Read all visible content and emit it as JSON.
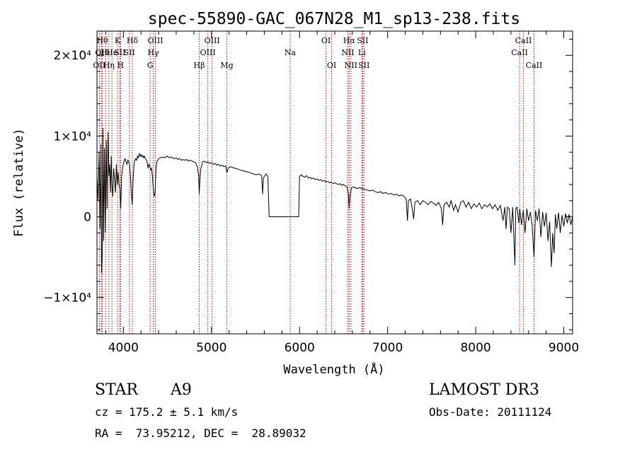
{
  "chart_data": {
    "type": "line",
    "title": "spec-55890-GAC_067N28_M1_sp13-238.fits",
    "xlabel": "Wavelength (Å)",
    "ylabel": "Flux (relative)",
    "xlim": [
      3700,
      9100
    ],
    "ylim": [
      -14500,
      23000
    ],
    "x_ticks": [
      4000,
      5000,
      6000,
      7000,
      8000,
      9000
    ],
    "y_ticks": [
      {
        "value": 20000,
        "label": "2×10⁴"
      },
      {
        "value": 10000,
        "label": "1×10⁴"
      },
      {
        "value": 0,
        "label": "0"
      },
      {
        "value": -10000,
        "label": "−1×10⁴"
      }
    ],
    "grid": false,
    "line_color": "#000000",
    "marker_color": "#cc0000",
    "series": [
      {
        "values": [
          [
            3700,
            5000
          ],
          [
            3712,
            2000
          ],
          [
            3725,
            8000
          ],
          [
            3735,
            -1500
          ],
          [
            3745,
            9000
          ],
          [
            3752,
            -7000
          ],
          [
            3760,
            -4500
          ],
          [
            3768,
            11000
          ],
          [
            3775,
            -3000
          ],
          [
            3785,
            8500
          ],
          [
            3795,
            -2000
          ],
          [
            3805,
            9500
          ],
          [
            3815,
            1000
          ],
          [
            3825,
            10500
          ],
          [
            3835,
            5000
          ],
          [
            3845,
            6500
          ],
          [
            3855,
            3000
          ],
          [
            3862,
            7500
          ],
          [
            3870,
            4000
          ],
          [
            3880,
            2500
          ],
          [
            3890,
            6000
          ],
          [
            3900,
            4500
          ],
          [
            3910,
            3000
          ],
          [
            3920,
            6500
          ],
          [
            3930,
            4000
          ],
          [
            3940,
            5500
          ],
          [
            3950,
            4000
          ],
          [
            3960,
            3500
          ],
          [
            3970,
            1000
          ],
          [
            3980,
            5000
          ],
          [
            3990,
            6000
          ],
          [
            4000,
            6500
          ],
          [
            4010,
            7000
          ],
          [
            4020,
            7200
          ],
          [
            4030,
            6800
          ],
          [
            4040,
            6500
          ],
          [
            4050,
            7000
          ],
          [
            4060,
            6800
          ],
          [
            4070,
            6500
          ],
          [
            4080,
            5000
          ],
          [
            4090,
            3000
          ],
          [
            4101,
            1500
          ],
          [
            4110,
            4500
          ],
          [
            4120,
            6500
          ],
          [
            4130,
            7000
          ],
          [
            4140,
            7200
          ],
          [
            4150,
            7000
          ],
          [
            4160,
            7500
          ],
          [
            4170,
            7300
          ],
          [
            4180,
            7800
          ],
          [
            4190,
            7500
          ],
          [
            4200,
            7700
          ],
          [
            4210,
            7400
          ],
          [
            4220,
            7600
          ],
          [
            4230,
            7300
          ],
          [
            4240,
            7500
          ],
          [
            4250,
            7200
          ],
          [
            4260,
            7100
          ],
          [
            4270,
            6800
          ],
          [
            4280,
            6000
          ],
          [
            4290,
            6500
          ],
          [
            4300,
            6200
          ],
          [
            4310,
            5800
          ],
          [
            4320,
            6000
          ],
          [
            4330,
            5000
          ],
          [
            4340,
            3500
          ],
          [
            4350,
            2500
          ],
          [
            4360,
            3000
          ],
          [
            4370,
            6000
          ],
          [
            4380,
            6800
          ],
          [
            4390,
            7000
          ],
          [
            4400,
            7200
          ],
          [
            4420,
            7300
          ],
          [
            4440,
            7400
          ],
          [
            4460,
            7300
          ],
          [
            4480,
            7400
          ],
          [
            4500,
            7500
          ],
          [
            4520,
            7300
          ],
          [
            4540,
            7400
          ],
          [
            4560,
            7300
          ],
          [
            4580,
            7200
          ],
          [
            4600,
            7300
          ],
          [
            4620,
            7100
          ],
          [
            4640,
            7200
          ],
          [
            4660,
            7000
          ],
          [
            4680,
            7100
          ],
          [
            4700,
            7000
          ],
          [
            4720,
            7100
          ],
          [
            4740,
            6900
          ],
          [
            4760,
            7000
          ],
          [
            4780,
            6900
          ],
          [
            4800,
            6800
          ],
          [
            4820,
            6700
          ],
          [
            4840,
            6200
          ],
          [
            4855,
            5000
          ],
          [
            4861,
            2800
          ],
          [
            4868,
            4500
          ],
          [
            4880,
            6000
          ],
          [
            4900,
            6800
          ],
          [
            4920,
            6900
          ],
          [
            4940,
            6700
          ],
          [
            4960,
            6800
          ],
          [
            4980,
            6600
          ],
          [
            5000,
            6700
          ],
          [
            5020,
            6500
          ],
          [
            5040,
            6600
          ],
          [
            5060,
            6400
          ],
          [
            5080,
            6500
          ],
          [
            5100,
            6300
          ],
          [
            5120,
            6400
          ],
          [
            5140,
            6200
          ],
          [
            5160,
            6300
          ],
          [
            5175,
            5500
          ],
          [
            5190,
            6000
          ],
          [
            5210,
            6200
          ],
          [
            5240,
            6100
          ],
          [
            5270,
            6000
          ],
          [
            5300,
            5900
          ],
          [
            5330,
            5800
          ],
          [
            5360,
            5700
          ],
          [
            5390,
            5600
          ],
          [
            5420,
            5550
          ],
          [
            5450,
            5400
          ],
          [
            5480,
            5300
          ],
          [
            5510,
            5200
          ],
          [
            5540,
            5300
          ],
          [
            5570,
            5100
          ],
          [
            5580,
            2800
          ],
          [
            5590,
            4800
          ],
          [
            5600,
            5000
          ],
          [
            5620,
            5300
          ],
          [
            5640,
            5000
          ],
          [
            5655,
            0
          ],
          [
            5990,
            0
          ],
          [
            6000,
            5000
          ],
          [
            6020,
            5200
          ],
          [
            6040,
            5000
          ],
          [
            6060,
            4900
          ],
          [
            6080,
            5100
          ],
          [
            6100,
            4800
          ],
          [
            6120,
            4900
          ],
          [
            6140,
            4700
          ],
          [
            6160,
            4800
          ],
          [
            6180,
            4600
          ],
          [
            6200,
            4700
          ],
          [
            6220,
            4500
          ],
          [
            6240,
            4600
          ],
          [
            6260,
            4400
          ],
          [
            6280,
            4500
          ],
          [
            6300,
            4300
          ],
          [
            6320,
            4400
          ],
          [
            6340,
            4200
          ],
          [
            6360,
            4300
          ],
          [
            6380,
            4100
          ],
          [
            6400,
            4200
          ],
          [
            6420,
            4100
          ],
          [
            6440,
            4000
          ],
          [
            6460,
            4100
          ],
          [
            6480,
            3900
          ],
          [
            6500,
            4000
          ],
          [
            6520,
            3800
          ],
          [
            6540,
            3700
          ],
          [
            6555,
            2700
          ],
          [
            6563,
            1000
          ],
          [
            6572,
            2500
          ],
          [
            6590,
            3600
          ],
          [
            6620,
            3700
          ],
          [
            6650,
            3500
          ],
          [
            6680,
            3600
          ],
          [
            6710,
            3500
          ],
          [
            6740,
            3400
          ],
          [
            6770,
            3300
          ],
          [
            6800,
            3200
          ],
          [
            6830,
            3300
          ],
          [
            6860,
            3100
          ],
          [
            6890,
            3000
          ],
          [
            6920,
            3100
          ],
          [
            6950,
            2900
          ],
          [
            6980,
            3000
          ],
          [
            7010,
            2800
          ],
          [
            7040,
            2900
          ],
          [
            7070,
            2700
          ],
          [
            7100,
            2800
          ],
          [
            7130,
            2600
          ],
          [
            7160,
            2700
          ],
          [
            7190,
            2500
          ],
          [
            7210,
            2200
          ],
          [
            7225,
            -500
          ],
          [
            7235,
            2000
          ],
          [
            7260,
            2200
          ],
          [
            7280,
            1000
          ],
          [
            7295,
            -300
          ],
          [
            7310,
            1800
          ],
          [
            7340,
            2000
          ],
          [
            7370,
            1500
          ],
          [
            7400,
            2000
          ],
          [
            7430,
            1800
          ],
          [
            7460,
            1500
          ],
          [
            7490,
            1900
          ],
          [
            7520,
            1700
          ],
          [
            7550,
            1400
          ],
          [
            7580,
            1800
          ],
          [
            7610,
            1000
          ],
          [
            7625,
            -1000
          ],
          [
            7640,
            1500
          ],
          [
            7670,
            1800
          ],
          [
            7700,
            1200
          ],
          [
            7720,
            2000
          ],
          [
            7750,
            800
          ],
          [
            7770,
            1500
          ],
          [
            7800,
            600
          ],
          [
            7830,
            1800
          ],
          [
            7860,
            2000
          ],
          [
            7890,
            1200
          ],
          [
            7920,
            1800
          ],
          [
            7950,
            1000
          ],
          [
            7980,
            1600
          ],
          [
            8010,
            1200
          ],
          [
            8040,
            1700
          ],
          [
            8070,
            1000
          ],
          [
            8100,
            1500
          ],
          [
            8130,
            1200
          ],
          [
            8160,
            1600
          ],
          [
            8190,
            1000
          ],
          [
            8220,
            1500
          ],
          [
            8250,
            800
          ],
          [
            8280,
            1400
          ],
          [
            8310,
            -500
          ],
          [
            8330,
            1200
          ],
          [
            8345,
            -1500
          ],
          [
            8360,
            1200
          ],
          [
            8380,
            1000
          ],
          [
            8400,
            -2000
          ],
          [
            8420,
            1200
          ],
          [
            8445,
            -6000
          ],
          [
            8455,
            1000
          ],
          [
            8470,
            1200
          ],
          [
            8490,
            -800
          ],
          [
            8500,
            1000
          ],
          [
            8520,
            -1000
          ],
          [
            8540,
            800
          ],
          [
            8560,
            -2000
          ],
          [
            8580,
            1000
          ],
          [
            8600,
            -500
          ],
          [
            8620,
            600
          ],
          [
            8640,
            -1000
          ],
          [
            8662,
            -5000
          ],
          [
            8680,
            800
          ],
          [
            8700,
            -500
          ],
          [
            8720,
            1000
          ],
          [
            8740,
            -2500
          ],
          [
            8760,
            600
          ],
          [
            8780,
            -1200
          ],
          [
            8800,
            500
          ],
          [
            8820,
            -3000
          ],
          [
            8840,
            -600
          ],
          [
            8860,
            -6200
          ],
          [
            8875,
            -2000
          ],
          [
            8890,
            -4500
          ],
          [
            8905,
            300
          ],
          [
            8920,
            -1500
          ],
          [
            8940,
            500
          ],
          [
            8960,
            -2000
          ],
          [
            8980,
            200
          ],
          [
            9000,
            -1200
          ],
          [
            9020,
            400
          ],
          [
            9040,
            -800
          ],
          [
            9060,
            300
          ],
          [
            9080,
            -1000
          ],
          [
            9100,
            0
          ]
        ]
      }
    ],
    "line_markers": [
      {
        "wavelength": 3727,
        "row": 3,
        "label": "OII"
      },
      {
        "wavelength": 3750,
        "row": 2,
        "label": "OII"
      },
      {
        "wavelength": 3760,
        "row": 1,
        "label": "Hθ"
      },
      {
        "wavelength": 3798,
        "row": 2,
        "label": "Hι"
      },
      {
        "wavelength": 3835,
        "row": 3,
        "label": "Hη"
      },
      {
        "wavelength": 3870,
        "row": 2,
        "label": "He"
      },
      {
        "wavelength": 3934,
        "row": 1,
        "label": "K"
      },
      {
        "wavelength": 3968,
        "row": 3,
        "label": "H"
      },
      {
        "wavelength": 3960,
        "row": 2,
        "label": "SII"
      },
      {
        "wavelength": 4102,
        "row": 1,
        "label": "Hδ"
      },
      {
        "wavelength": 4068,
        "row": 2,
        "label": "SII"
      },
      {
        "wavelength": 4304,
        "row": 3,
        "label": "G"
      },
      {
        "wavelength": 4340,
        "row": 2,
        "label": "Hγ"
      },
      {
        "wavelength": 4363,
        "row": 1,
        "label": "OIII"
      },
      {
        "wavelength": 4861,
        "row": 3,
        "label": "Hβ"
      },
      {
        "wavelength": 4959,
        "row": 2,
        "label": "OIII"
      },
      {
        "wavelength": 5007,
        "row": 1,
        "label": "OIII"
      },
      {
        "wavelength": 5175,
        "row": 3,
        "label": "Mg"
      },
      {
        "wavelength": 5894,
        "row": 2,
        "label": "Na"
      },
      {
        "wavelength": 6300,
        "row": 1,
        "label": "OI"
      },
      {
        "wavelength": 6364,
        "row": 3,
        "label": "OI"
      },
      {
        "wavelength": 6548,
        "row": 2,
        "label": "NII"
      },
      {
        "wavelength": 6563,
        "row": 1,
        "label": "Hα"
      },
      {
        "wavelength": 6583,
        "row": 3,
        "label": "NII"
      },
      {
        "wavelength": 6708,
        "row": 2,
        "label": "Li"
      },
      {
        "wavelength": 6716,
        "row": 1,
        "label": "SII"
      },
      {
        "wavelength": 6731,
        "row": 3,
        "label": "SII"
      },
      {
        "wavelength": 8498,
        "row": 2,
        "label": "CaII"
      },
      {
        "wavelength": 8542,
        "row": 1,
        "label": "CaII"
      },
      {
        "wavelength": 8662,
        "row": 3,
        "label": "CaII"
      }
    ]
  },
  "info": {
    "class_label": "STAR",
    "subclass_label": "A9",
    "survey_label": "LAMOST DR3",
    "cz_label": "cz = 175.2 ± 5.1 km/s",
    "obs_date_label": "Obs-Date: 20111124",
    "radec_label": "RA =  73.95212, DEC =  28.89032"
  }
}
